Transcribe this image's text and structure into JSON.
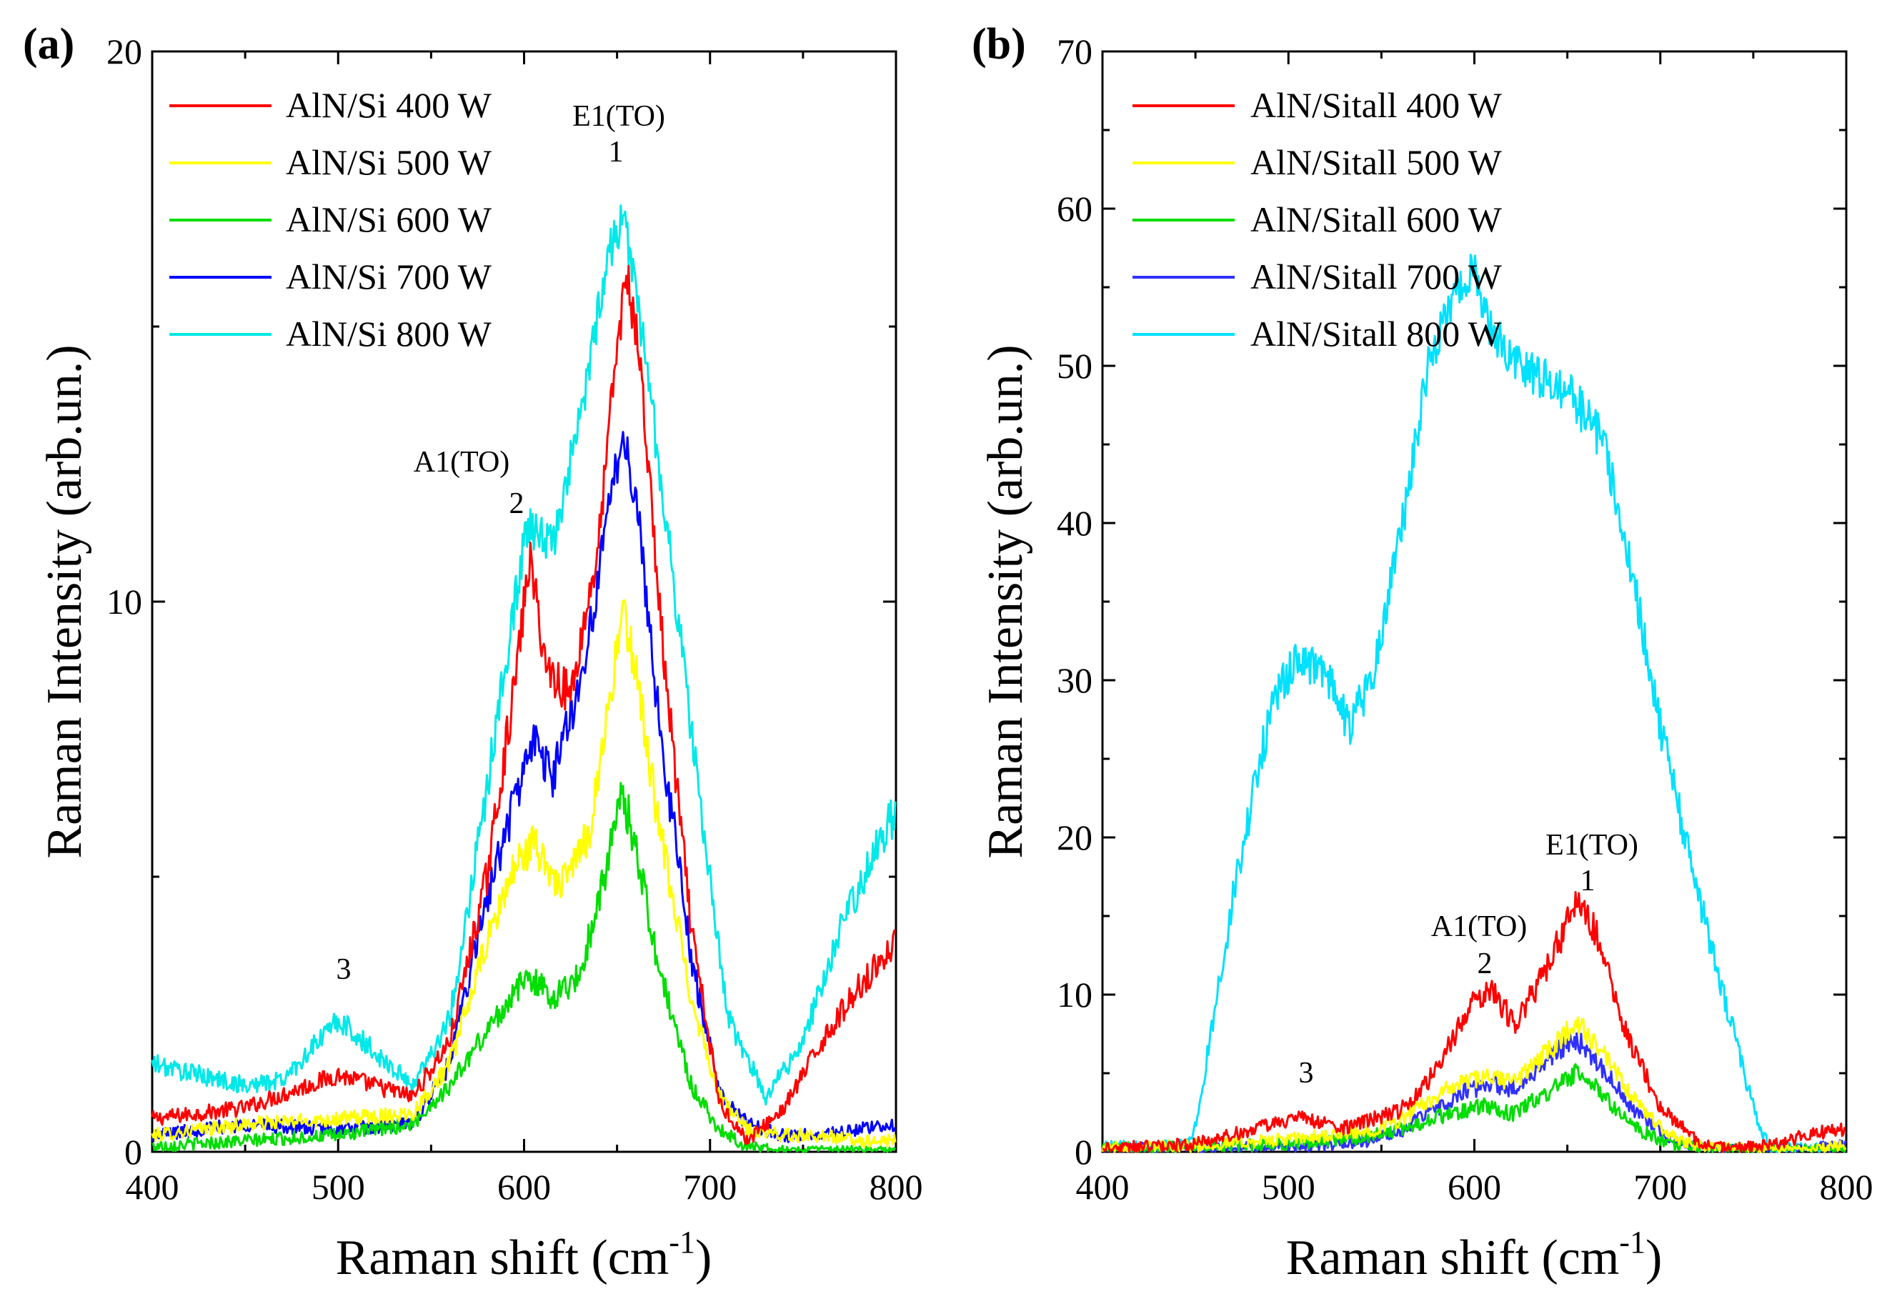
{
  "chart_data": [
    {
      "type": "line",
      "panel_label": "(a)",
      "xlabel": "Raman shift (cm",
      "xlabel_sup": "-1",
      "xlabel_close": ")",
      "ylabel": "Raman Intensity (arb.un.)",
      "xlim": [
        400,
        800
      ],
      "ylim": [
        0,
        20
      ],
      "xticks": [
        "400",
        "500",
        "600",
        "700",
        "800"
      ],
      "yticks": [
        "0",
        "10",
        "20"
      ],
      "legend_position": "top-left",
      "series": [
        {
          "name": "AlN/Si 400 W",
          "color": "#ff0000",
          "x": [
            400,
            450,
            500,
            540,
            560,
            580,
            595,
            603,
            612,
            625,
            640,
            648,
            655,
            662,
            675,
            690,
            705,
            720,
            740,
            760,
            780,
            800
          ],
          "y": [
            0.6,
            0.8,
            1.4,
            1.0,
            2.0,
            5.0,
            8.5,
            10.8,
            8.8,
            8.3,
            11.0,
            14.0,
            16.0,
            14.5,
            9.0,
            4.0,
            0.9,
            0.2,
            0.8,
            2.0,
            3.0,
            3.8
          ]
        },
        {
          "name": "AlN/Si 500 W",
          "color": "#ffff00",
          "x": [
            400,
            450,
            500,
            540,
            560,
            580,
            595,
            605,
            620,
            635,
            645,
            653,
            660,
            672,
            690,
            705,
            720,
            740,
            760,
            780,
            800
          ],
          "y": [
            0.3,
            0.5,
            0.6,
            0.7,
            1.6,
            3.8,
            5.2,
            5.6,
            4.8,
            5.8,
            8.0,
            9.8,
            8.8,
            6.0,
            2.8,
            1.0,
            0.4,
            0.3,
            0.3,
            0.2,
            0.2
          ]
        },
        {
          "name": "AlN/Si 600 W",
          "color": "#00dd00",
          "x": [
            400,
            450,
            500,
            540,
            560,
            580,
            595,
            603,
            615,
            630,
            645,
            653,
            660,
            672,
            690,
            705,
            720,
            740,
            760,
            780,
            800
          ],
          "y": [
            0.1,
            0.2,
            0.3,
            0.5,
            1.2,
            2.2,
            2.9,
            3.2,
            2.8,
            3.2,
            5.3,
            6.5,
            5.6,
            3.4,
            1.2,
            0.4,
            0.1,
            0.0,
            0.0,
            0.0,
            0.0
          ]
        },
        {
          "name": "AlN/Si 700 W",
          "color": "#0000ff",
          "x": [
            400,
            450,
            500,
            540,
            560,
            580,
            595,
            605,
            615,
            630,
            640,
            648,
            653,
            660,
            672,
            690,
            705,
            720,
            740,
            760,
            780,
            800
          ],
          "y": [
            0.3,
            0.5,
            0.4,
            0.5,
            1.6,
            4.6,
            6.4,
            7.5,
            6.8,
            8.5,
            10.4,
            12.2,
            13.0,
            12.0,
            8.0,
            3.5,
            1.1,
            0.5,
            0.3,
            0.3,
            0.4,
            0.5
          ]
        },
        {
          "name": "AlN/Si 800 W",
          "color": "#00e8e8",
          "x": [
            400,
            450,
            470,
            500,
            540,
            560,
            580,
            595,
            602,
            615,
            630,
            645,
            653,
            658,
            665,
            680,
            695,
            710,
            730,
            750,
            770,
            790,
            800
          ],
          "y": [
            1.6,
            1.2,
            1.3,
            2.4,
            1.2,
            2.4,
            6.6,
            10.0,
            11.4,
            11.0,
            13.3,
            16.3,
            17.0,
            16.2,
            14.5,
            10.5,
            6.2,
            2.4,
            1.0,
            2.0,
            4.0,
            5.6,
            6.2
          ]
        }
      ],
      "annotations": [
        {
          "id": "e1",
          "text": "E1(TO)",
          "sub": "1",
          "x": 655,
          "y": 18.9
        },
        {
          "id": "a1",
          "text": "A1(TO)",
          "sub": "2",
          "x": 600,
          "y": 12.7
        },
        {
          "id": "p3",
          "text": "3",
          "x": 505,
          "y": 3.2
        }
      ]
    },
    {
      "type": "line",
      "panel_label": "(b)",
      "xlabel": "Raman shift (cm",
      "xlabel_sup": "-1",
      "xlabel_close": ")",
      "ylabel": "Raman Intensity (arb.un.)",
      "xlim": [
        400,
        800
      ],
      "ylim": [
        0,
        70
      ],
      "xticks": [
        "400",
        "500",
        "600",
        "700",
        "800"
      ],
      "yticks": [
        "0",
        "10",
        "20",
        "30",
        "40",
        "50",
        "60",
        "70"
      ],
      "legend_position": "top-left",
      "series": [
        {
          "name": "AlN/Sitall 400 W",
          "color": "#ff0000",
          "x": [
            400,
            450,
            480,
            505,
            530,
            560,
            580,
            595,
            608,
            622,
            640,
            655,
            665,
            680,
            700,
            720,
            740,
            760,
            780,
            800
          ],
          "y": [
            0.2,
            0.5,
            1.4,
            2.2,
            1.5,
            2.6,
            5.2,
            8.8,
            10.5,
            8.0,
            12.0,
            15.8,
            14.0,
            8.0,
            2.8,
            0.6,
            0.2,
            0.4,
            1.1,
            1.5
          ]
        },
        {
          "name": "AlN/Sitall 500 W",
          "color": "#ffff00",
          "x": [
            400,
            450,
            500,
            540,
            560,
            580,
            595,
            608,
            622,
            640,
            655,
            668,
            685,
            705,
            725,
            745,
            770,
            800
          ],
          "y": [
            0.3,
            0.4,
            0.8,
            1.2,
            2.0,
            3.6,
            4.5,
            4.7,
            4.5,
            6.4,
            8.3,
            6.4,
            3.4,
            1.0,
            0.3,
            0.2,
            0.2,
            0.3
          ]
        },
        {
          "name": "AlN/Sitall 600 W",
          "color": "#00dd00",
          "x": [
            400,
            450,
            500,
            540,
            560,
            580,
            595,
            605,
            620,
            640,
            655,
            668,
            685,
            705,
            725,
            745,
            770,
            800
          ],
          "y": [
            0.2,
            0.3,
            0.5,
            0.9,
            1.4,
            2.2,
            2.6,
            2.9,
            2.4,
            3.8,
            5.0,
            3.8,
            1.6,
            0.5,
            0.1,
            0.1,
            0.1,
            0.1
          ]
        },
        {
          "name": "AlN/Sitall 700 W",
          "color": "#3030ff",
          "x": [
            400,
            450,
            500,
            540,
            560,
            580,
            595,
            608,
            622,
            640,
            655,
            668,
            685,
            705,
            725,
            745,
            770,
            800
          ],
          "y": [
            0.2,
            0.2,
            0.3,
            0.6,
            1.3,
            2.8,
            3.8,
            4.3,
            4.0,
            6.0,
            7.2,
            5.5,
            2.7,
            0.8,
            0.2,
            0.1,
            0.1,
            0.4
          ]
        },
        {
          "name": "AlN/Sitall 800 W",
          "color": "#00e0ff",
          "x": [
            400,
            445,
            450,
            470,
            490,
            505,
            520,
            532,
            545,
            560,
            575,
            590,
            600,
            610,
            625,
            650,
            670,
            685,
            700,
            715,
            730,
            745,
            755,
            760,
            800
          ],
          "y": [
            0.3,
            0.4,
            1.5,
            16.0,
            28.0,
            31.5,
            30.5,
            27.0,
            30.0,
            39.0,
            50.0,
            55.0,
            56.0,
            52.0,
            50.0,
            48.5,
            45.0,
            37.0,
            27.0,
            19.0,
            12.0,
            5.0,
            1.0,
            0.2,
            0.2
          ]
        }
      ],
      "annotations": [
        {
          "id": "e1",
          "text": "E1(TO)",
          "sub": "1",
          "x": 657,
          "y": 19.5
        },
        {
          "id": "a1",
          "text": "A1(TO)",
          "sub": "2",
          "x": 603,
          "y": 13.5
        },
        {
          "id": "p3",
          "text": "3",
          "x": 510,
          "y": 4.5
        }
      ]
    }
  ]
}
